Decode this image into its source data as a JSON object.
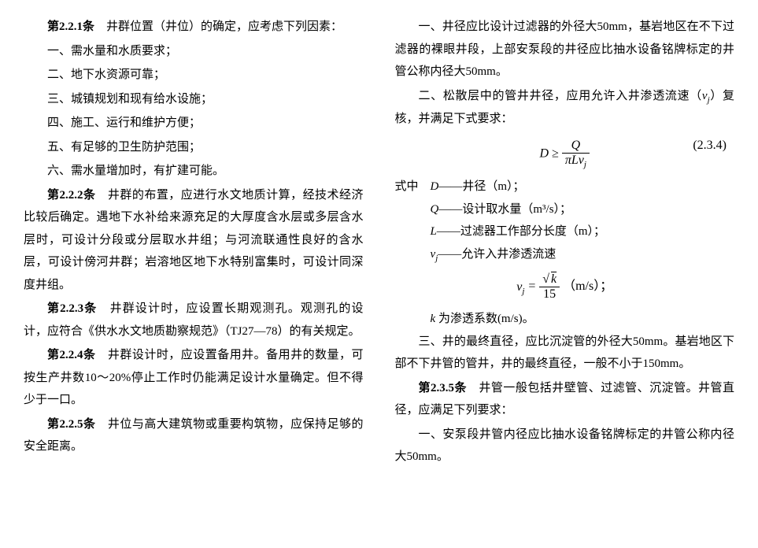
{
  "left_column": {
    "p1": {
      "bold": "第2.2.1条",
      "text": "　井群位置（井位）的确定，应考虑下列因素："
    },
    "items1": [
      "一、需水量和水质要求；",
      "二、地下水资源可靠；",
      "三、城镇规划和现有给水设施；",
      "四、施工、运行和维护方便；",
      "五、有足够的卫生防护范围；",
      "六、需水量增加时，有扩建可能。"
    ],
    "p2": {
      "bold": "第2.2.2条",
      "text": "　井群的布置，应进行水文地质计算，经技术经济比较后确定。遇地下水补给来源充足的大厚度含水层或多层含水层时，可设计分段或分层取水井组；与河流联通性良好的含水层，可设计傍河井群；岩溶地区地下水特别富集时，可设计同深度井组。"
    },
    "p3": {
      "bold": "第2.2.3条",
      "text": "　井群设计时，应设置长期观测孔。观测孔的设计，应符合《供水水文地质勘察规范》（TJ27—78）的有关规定。"
    },
    "p4": {
      "bold": "第2.2.4条",
      "text": "　井群设计时，应设置备用井。备用井的数量，可按生产井数10～20%停止工作时仍能满足设计水量确定。但不得少于一口。"
    },
    "p5": {
      "bold": "第2.2.5条",
      "text": "　井位与高大建筑物或重要构筑物，应保持足够的安全距离。"
    }
  },
  "right_column": {
    "p1": "一、井径应比设计过滤器的外径大50mm，基岩地区在不下过滤器的裸眼井段，上部安泵段的井径应比抽水设备铭牌标定的井管公称内径大50mm。",
    "p2_a": "二、松散层中的管井井径，应用允许入井渗透流速（",
    "p2_b": "）复核，并满足下式要求：",
    "formula1": {
      "lhs": "D",
      "op": "≥",
      "num": "Q",
      "den_pi": "π",
      "den_L": "L",
      "den_v": "v",
      "den_j": "j",
      "number": "(2.3.4)"
    },
    "where_label": "式中",
    "where_items": [
      {
        "sym": "D",
        "desc": "——井径（m）；"
      },
      {
        "sym": "Q",
        "desc": "——设计取水量（m³/s）；"
      },
      {
        "sym": "L",
        "desc": "——过滤器工作部分长度（m）；"
      },
      {
        "sym_v": "v",
        "sym_j": "j",
        "desc": "——允许入井渗透流速"
      }
    ],
    "formula2": {
      "lhs_v": "v",
      "lhs_j": "j",
      "eq": "=",
      "sqrt": "√",
      "num_k": "k",
      "den": "15",
      "unit": "（m/s）；"
    },
    "k_line_k": "k",
    "k_line_text": " 为渗透系数(m/s)。",
    "p3": "三、井的最终直径，应比沉淀管的外径大50mm。基岩地区下部不下井管的管井，井的最终直径，一般不小于150mm。",
    "p4": {
      "bold": "第2.3.5条",
      "text": "　井管一般包括井壁管、过滤管、沉淀管。井管直径，应满足下列要求："
    },
    "p5": "一、安泵段井管内径应比抽水设备铭牌标定的井管公称内径大50mm。"
  }
}
